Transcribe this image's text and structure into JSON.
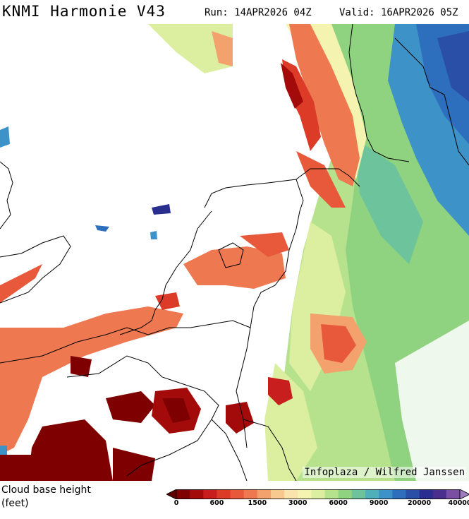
{
  "header": {
    "title": "KNMI Harmonie V43",
    "run": "Run: 14APR2026 04Z",
    "valid": "Valid: 16APR2026 05Z"
  },
  "map": {
    "credit": "Infoplaza / Wilfred Janssen"
  },
  "legend": {
    "label_line1": "Cloud base height",
    "label_line2": "(feet)",
    "colors": [
      "#5c0000",
      "#7f0000",
      "#a30b0b",
      "#c81e1e",
      "#dc3b28",
      "#e8583a",
      "#ee7950",
      "#f3a26e",
      "#f7c98e",
      "#fae4ad",
      "#f5f3b0",
      "#dcefa0",
      "#b7e28d",
      "#8fd27f",
      "#6cc39c",
      "#4fb0ba",
      "#3d92c7",
      "#2e6fbd",
      "#2a4fa6",
      "#2a2f8f",
      "#4b2f8f",
      "#7a4fa3",
      "#9e7dc0"
    ],
    "ticks": [
      "0",
      "600",
      "1500",
      "3000",
      "6000",
      "9000",
      "20000",
      "40000"
    ]
  }
}
